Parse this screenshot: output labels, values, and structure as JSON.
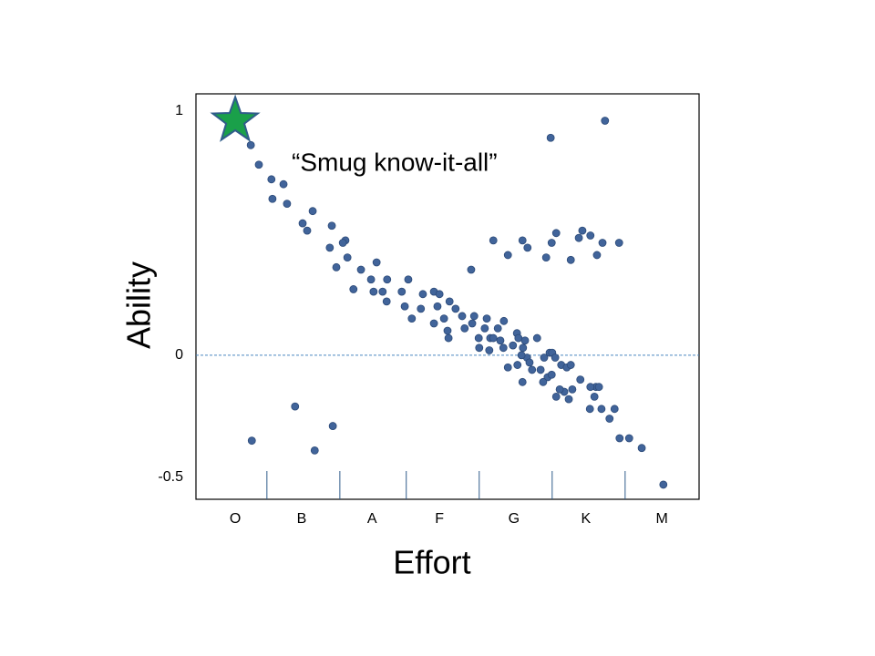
{
  "chart_data": {
    "type": "scatter",
    "x_label": "Effort",
    "y_label": "Ability",
    "annotation": "“Smug know-it-all”",
    "color": "#41649a",
    "x": [
      10.9,
      12.5,
      15.0,
      17.4,
      15.2,
      18.1,
      23.2,
      21.2,
      22.1,
      27.0,
      26.6,
      29.7,
      29.2,
      27.9,
      30.1,
      32.8,
      31.3,
      35.9,
      34.8,
      35.3,
      37.1,
      38.0,
      37.9,
      40.9,
      42.2,
      41.5,
      42.9,
      44.7,
      45.1,
      47.3,
      48.4,
      48.0,
      50.4,
      49.3,
      47.3,
      50.0,
      51.6,
      52.9,
      53.4,
      50.2,
      54.9,
      55.3,
      57.8,
      57.4,
      58.5,
      56.2,
      56.3,
      59.1,
      60.5,
      60.0,
      61.2,
      58.3,
      61.1,
      63.8,
      64.1,
      65.0,
      63.0,
      65.8,
      65.4,
      67.8,
      64.7,
      62.0,
      63.9,
      66.3,
      66.8,
      64.9,
      69.2,
      70.3,
      70.8,
      68.5,
      69.9,
      71.4,
      72.6,
      69.0,
      70.7,
      71.6,
      73.2,
      72.3,
      74.1,
      74.8,
      76.4,
      73.7,
      74.5,
      79.5,
      78.4,
      79.2,
      80.1,
      80.6,
      78.3,
      82.2,
      83.2,
      84.2,
      86.1,
      88.6,
      92.9,
      11.1,
      19.7,
      23.6,
      27.2,
      54.7,
      59.1,
      62.0,
      64.9,
      65.9,
      69.6,
      70.7,
      71.6,
      74.5,
      76.1,
      76.8,
      78.4,
      79.7,
      80.8,
      84.1,
      70.5,
      81.3
    ],
    "y": [
      0.86,
      0.78,
      0.72,
      0.7,
      0.64,
      0.62,
      0.59,
      0.54,
      0.51,
      0.53,
      0.44,
      0.47,
      0.46,
      0.36,
      0.4,
      0.35,
      0.27,
      0.38,
      0.31,
      0.26,
      0.26,
      0.31,
      0.22,
      0.26,
      0.31,
      0.2,
      0.15,
      0.19,
      0.25,
      0.26,
      0.25,
      0.2,
      0.22,
      0.15,
      0.13,
      0.1,
      0.19,
      0.16,
      0.11,
      0.07,
      0.13,
      0.16,
      0.15,
      0.11,
      0.07,
      0.07,
      0.03,
      0.07,
      0.06,
      0.11,
      0.14,
      0.02,
      0.03,
      0.09,
      0.07,
      0.03,
      0.04,
      -0.01,
      0.06,
      0.07,
      0,
      -0.05,
      -0.04,
      -0.03,
      -0.06,
      -0.11,
      -0.01,
      0.01,
      0.01,
      -0.06,
      -0.09,
      -0.01,
      -0.04,
      -0.11,
      -0.08,
      -0.17,
      -0.15,
      -0.14,
      -0.18,
      -0.14,
      -0.1,
      -0.05,
      -0.04,
      -0.13,
      -0.13,
      -0.17,
      -0.13,
      -0.22,
      -0.22,
      -0.26,
      -0.22,
      -0.34,
      -0.34,
      -0.38,
      -0.53,
      -0.35,
      -0.21,
      -0.39,
      -0.29,
      0.35,
      0.47,
      0.41,
      0.47,
      0.44,
      0.4,
      0.46,
      0.5,
      0.39,
      0.48,
      0.51,
      0.49,
      0.41,
      0.46,
      0.46,
      0.89,
      0.96
    ],
    "highlight": {
      "x": 7.8,
      "y": 0.96,
      "color": "#1aa04a"
    },
    "xlim": [
      0,
      100
    ],
    "ylim": [
      -0.59,
      1.07
    ],
    "yticks": [
      -0.5,
      0,
      1
    ],
    "xticks": [
      {
        "value": 7.8,
        "label": "O"
      },
      {
        "value": 21.0,
        "label": "B"
      },
      {
        "value": 35.0,
        "label": "A"
      },
      {
        "value": 48.4,
        "label": "F"
      },
      {
        "value": 63.2,
        "label": "G"
      },
      {
        "value": 77.5,
        "label": "K"
      },
      {
        "value": 92.6,
        "label": "M"
      }
    ],
    "x_dividers": [
      14.1,
      28.6,
      41.8,
      56.3,
      70.8,
      85.3
    ],
    "reference_line": 0,
    "grid": false
  }
}
